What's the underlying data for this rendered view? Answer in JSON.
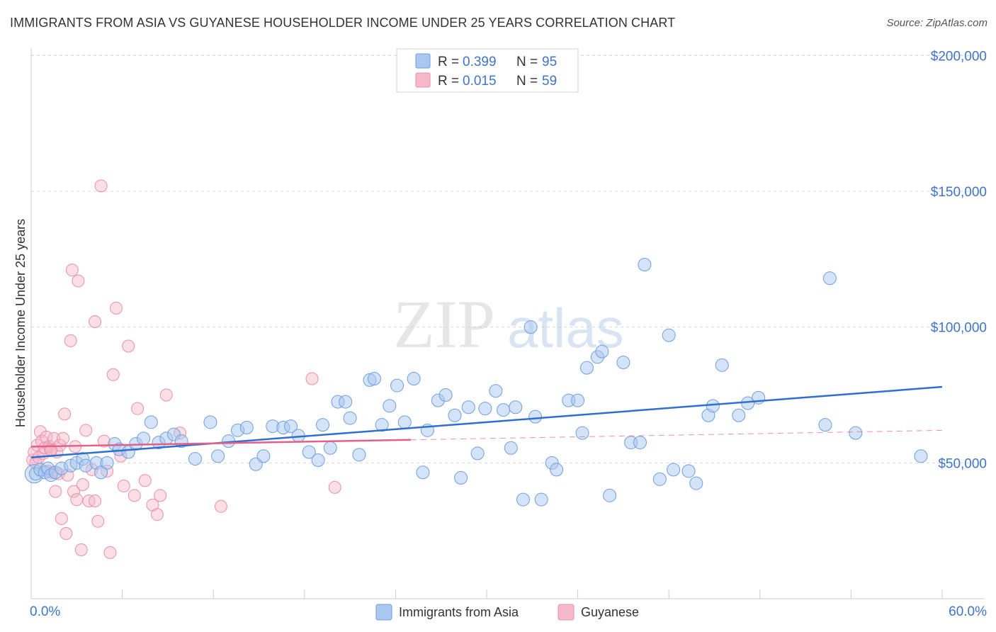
{
  "title": "IMMIGRANTS FROM ASIA VS GUYANESE HOUSEHOLDER INCOME UNDER 25 YEARS CORRELATION CHART",
  "source": "Source: ZipAtlas.com",
  "watermark": {
    "zip": "ZIP",
    "atlas": "atlas"
  },
  "colors": {
    "blue_fill": "#a9c7ef",
    "blue_stroke": "#6e9fe0",
    "blue_line": "#2f6fd0",
    "pink_fill": "#f5b8ca",
    "pink_stroke": "#ea8fab",
    "pink_line": "#e4608a",
    "grid": "#d9d9d9",
    "tick_text": "#3f74c8"
  },
  "legend": {
    "rows": [
      {
        "r_label": "R =",
        "r_value": "0.399",
        "n_label": "N =",
        "n_value": "95"
      },
      {
        "r_label": "R =",
        "r_value": "0.015",
        "n_label": "N =",
        "n_value": "59"
      }
    ]
  },
  "chart_data": {
    "type": "scatter",
    "title": "IMMIGRANTS FROM ASIA VS GUYANESE HOUSEHOLDER INCOME UNDER 25 YEARS CORRELATION CHART",
    "xlabel": "",
    "ylabel": "Householder Income Under 25 years",
    "xlim": [
      0,
      60
    ],
    "ylim": [
      0,
      210000
    ],
    "x_tick_labels": [
      "0.0%",
      "60.0%"
    ],
    "y_ticks": [
      50000,
      100000,
      150000,
      200000
    ],
    "y_tick_labels": [
      "$50,000",
      "$100,000",
      "$150,000",
      "$200,000"
    ],
    "grid": true,
    "legend_position": "top-center",
    "series": [
      {
        "name": "Immigrants from Asia",
        "r": 0.399,
        "n": 95,
        "trend": {
          "x": [
            0,
            60
          ],
          "y": [
            52000,
            78000
          ]
        },
        "points": [
          [
            0.3,
            46000
          ],
          [
            0.6,
            47500
          ],
          [
            0.9,
            46500
          ],
          [
            1.1,
            48000
          ],
          [
            1.3,
            45500
          ],
          [
            1.6,
            46500
          ],
          [
            2.0,
            48000
          ],
          [
            2.6,
            49000
          ],
          [
            3.0,
            50000
          ],
          [
            3.4,
            51500
          ],
          [
            3.6,
            49000
          ],
          [
            4.3,
            50000
          ],
          [
            4.6,
            46500
          ],
          [
            5.0,
            50000
          ],
          [
            5.5,
            57000
          ],
          [
            5.8,
            55000
          ],
          [
            6.4,
            54000
          ],
          [
            6.9,
            57000
          ],
          [
            7.4,
            59000
          ],
          [
            7.9,
            65000
          ],
          [
            8.4,
            57500
          ],
          [
            8.9,
            59000
          ],
          [
            9.4,
            60500
          ],
          [
            9.9,
            58000
          ],
          [
            10.8,
            51500
          ],
          [
            11.8,
            65000
          ],
          [
            12.3,
            52500
          ],
          [
            13.0,
            58000
          ],
          [
            13.6,
            62000
          ],
          [
            14.2,
            63000
          ],
          [
            14.8,
            49500
          ],
          [
            15.3,
            52500
          ],
          [
            15.9,
            63500
          ],
          [
            16.6,
            63000
          ],
          [
            17.1,
            63500
          ],
          [
            17.6,
            60000
          ],
          [
            18.3,
            54000
          ],
          [
            18.9,
            51000
          ],
          [
            19.2,
            64000
          ],
          [
            19.7,
            55500
          ],
          [
            20.2,
            72500
          ],
          [
            20.7,
            72500
          ],
          [
            21.0,
            66500
          ],
          [
            21.6,
            53000
          ],
          [
            22.3,
            80500
          ],
          [
            22.6,
            81000
          ],
          [
            23.1,
            64000
          ],
          [
            23.6,
            71000
          ],
          [
            24.1,
            78500
          ],
          [
            24.6,
            65000
          ],
          [
            25.2,
            81000
          ],
          [
            25.8,
            46500
          ],
          [
            26.1,
            62000
          ],
          [
            26.8,
            73000
          ],
          [
            27.3,
            75000
          ],
          [
            27.9,
            67500
          ],
          [
            28.3,
            44500
          ],
          [
            28.8,
            70500
          ],
          [
            29.4,
            53500
          ],
          [
            29.9,
            70000
          ],
          [
            30.6,
            76500
          ],
          [
            31.1,
            69500
          ],
          [
            31.6,
            55500
          ],
          [
            31.9,
            70500
          ],
          [
            32.4,
            36500
          ],
          [
            32.9,
            100000
          ],
          [
            33.2,
            67000
          ],
          [
            33.6,
            36500
          ],
          [
            34.3,
            50000
          ],
          [
            34.6,
            47500
          ],
          [
            35.4,
            73000
          ],
          [
            36.0,
            73000
          ],
          [
            36.3,
            61000
          ],
          [
            36.6,
            85000
          ],
          [
            37.3,
            89000
          ],
          [
            37.6,
            91000
          ],
          [
            38.1,
            38000
          ],
          [
            39.0,
            87000
          ],
          [
            39.5,
            57500
          ],
          [
            40.1,
            57500
          ],
          [
            40.4,
            123000
          ],
          [
            41.4,
            44000
          ],
          [
            42.0,
            97000
          ],
          [
            42.3,
            47500
          ],
          [
            43.3,
            47000
          ],
          [
            43.8,
            42500
          ],
          [
            44.6,
            67500
          ],
          [
            44.9,
            71000
          ],
          [
            45.5,
            86000
          ],
          [
            46.6,
            67500
          ],
          [
            47.2,
            72000
          ],
          [
            47.9,
            74000
          ],
          [
            52.3,
            64000
          ],
          [
            52.6,
            118000
          ],
          [
            54.3,
            61000
          ],
          [
            58.6,
            52500
          ]
        ]
      },
      {
        "name": "Guyanese",
        "r": 0.015,
        "n": 59,
        "trend": {
          "x": [
            0,
            25
          ],
          "y": [
            56000,
            58500
          ]
        },
        "trend_extension": {
          "x": [
            25,
            60
          ],
          "y": [
            58500,
            62000
          ]
        },
        "points": [
          [
            0.1,
            51000
          ],
          [
            0.2,
            54000
          ],
          [
            0.3,
            50000
          ],
          [
            0.4,
            56500
          ],
          [
            0.5,
            52000
          ],
          [
            0.6,
            61500
          ],
          [
            0.7,
            58000
          ],
          [
            0.8,
            53500
          ],
          [
            0.9,
            55500
          ],
          [
            1.0,
            59500
          ],
          [
            1.1,
            47000
          ],
          [
            1.2,
            56000
          ],
          [
            1.3,
            55000
          ],
          [
            1.4,
            46500
          ],
          [
            1.5,
            59000
          ],
          [
            1.6,
            39500
          ],
          [
            1.7,
            54000
          ],
          [
            1.8,
            46000
          ],
          [
            1.9,
            56500
          ],
          [
            2.0,
            29500
          ],
          [
            2.1,
            59000
          ],
          [
            2.2,
            68000
          ],
          [
            2.3,
            24000
          ],
          [
            2.4,
            45500
          ],
          [
            2.6,
            95000
          ],
          [
            2.7,
            121000
          ],
          [
            2.8,
            39500
          ],
          [
            2.9,
            56000
          ],
          [
            3.1,
            117000
          ],
          [
            3.3,
            18000
          ],
          [
            3.4,
            42000
          ],
          [
            3.6,
            62000
          ],
          [
            3.8,
            36000
          ],
          [
            4.0,
            47500
          ],
          [
            4.2,
            102000
          ],
          [
            4.4,
            28500
          ],
          [
            4.6,
            152000
          ],
          [
            4.8,
            58000
          ],
          [
            5.0,
            47000
          ],
          [
            5.2,
            17000
          ],
          [
            5.4,
            82500
          ],
          [
            5.6,
            107000
          ],
          [
            5.9,
            52500
          ],
          [
            6.1,
            41500
          ],
          [
            6.4,
            93000
          ],
          [
            6.8,
            38000
          ],
          [
            7.0,
            70000
          ],
          [
            7.5,
            43500
          ],
          [
            8.0,
            34500
          ],
          [
            8.3,
            31000
          ],
          [
            8.5,
            38000
          ],
          [
            8.9,
            75000
          ],
          [
            9.8,
            61000
          ],
          [
            12.5,
            34000
          ],
          [
            18.5,
            81000
          ],
          [
            20.0,
            41000
          ],
          [
            4.2,
            36000
          ],
          [
            3.0,
            36500
          ],
          [
            1.3,
            54500
          ]
        ]
      }
    ]
  },
  "bottom_legend": {
    "items": [
      {
        "label": "Immigrants from Asia"
      },
      {
        "label": "Guyanese"
      }
    ]
  }
}
